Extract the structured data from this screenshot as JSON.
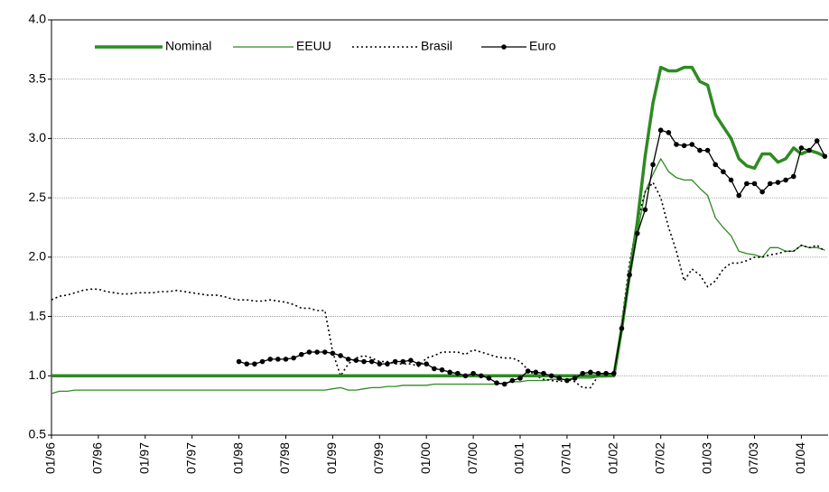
{
  "chart_data": {
    "type": "line",
    "categories": [
      "01/96",
      null,
      null,
      null,
      null,
      null,
      "07/96",
      null,
      null,
      null,
      null,
      null,
      "01/97",
      null,
      null,
      null,
      null,
      null,
      "07/97",
      null,
      null,
      null,
      null,
      null,
      "01/98",
      null,
      null,
      null,
      null,
      null,
      "07/98",
      null,
      null,
      null,
      null,
      null,
      "01/99",
      null,
      null,
      null,
      null,
      null,
      "07/99",
      null,
      null,
      null,
      null,
      null,
      "01/00",
      null,
      null,
      null,
      null,
      null,
      "07/00",
      null,
      null,
      null,
      null,
      null,
      "01/01",
      null,
      null,
      null,
      null,
      null,
      "07/01",
      null,
      null,
      null,
      null,
      null,
      "01/02",
      null,
      null,
      null,
      null,
      null,
      "07/02",
      null,
      null,
      null,
      null,
      null,
      "01/03",
      null,
      null,
      null,
      null,
      null,
      "07/03",
      null,
      null,
      null,
      null,
      null,
      "01/04",
      null,
      null,
      null
    ],
    "series": [
      {
        "name": "Nominal",
        "color": "#2e8b22",
        "width": 3.5,
        "dashed": false,
        "markers": false,
        "values": [
          1.0,
          1.0,
          1.0,
          1.0,
          1.0,
          1.0,
          1.0,
          1.0,
          1.0,
          1.0,
          1.0,
          1.0,
          1.0,
          1.0,
          1.0,
          1.0,
          1.0,
          1.0,
          1.0,
          1.0,
          1.0,
          1.0,
          1.0,
          1.0,
          1.0,
          1.0,
          1.0,
          1.0,
          1.0,
          1.0,
          1.0,
          1.0,
          1.0,
          1.0,
          1.0,
          1.0,
          1.0,
          1.0,
          1.0,
          1.0,
          1.0,
          1.0,
          1.0,
          1.0,
          1.0,
          1.0,
          1.0,
          1.0,
          1.0,
          1.0,
          1.0,
          1.0,
          1.0,
          1.0,
          1.0,
          1.0,
          1.0,
          1.0,
          1.0,
          1.0,
          1.0,
          1.0,
          1.0,
          1.0,
          1.0,
          1.0,
          1.0,
          1.0,
          1.0,
          1.0,
          1.0,
          1.0,
          1.0,
          1.4,
          1.85,
          2.3,
          2.85,
          3.3,
          3.6,
          3.57,
          3.57,
          3.6,
          3.6,
          3.48,
          3.45,
          3.2,
          3.1,
          3.0,
          2.83,
          2.77,
          2.75,
          2.87,
          2.87,
          2.8,
          2.83,
          2.92,
          2.87,
          2.9,
          2.88,
          2.85
        ]
      },
      {
        "name": "EEUU",
        "color": "#2e8b22",
        "width": 1.3,
        "dashed": false,
        "markers": false,
        "values": [
          0.85,
          0.87,
          0.87,
          0.88,
          0.88,
          0.88,
          0.88,
          0.88,
          0.88,
          0.88,
          0.88,
          0.88,
          0.88,
          0.88,
          0.88,
          0.88,
          0.88,
          0.88,
          0.88,
          0.88,
          0.88,
          0.88,
          0.88,
          0.88,
          0.88,
          0.88,
          0.88,
          0.88,
          0.88,
          0.88,
          0.88,
          0.88,
          0.88,
          0.88,
          0.88,
          0.88,
          0.89,
          0.9,
          0.88,
          0.88,
          0.89,
          0.9,
          0.9,
          0.91,
          0.91,
          0.92,
          0.92,
          0.92,
          0.92,
          0.93,
          0.93,
          0.93,
          0.93,
          0.93,
          0.93,
          0.93,
          0.93,
          0.93,
          0.94,
          0.95,
          0.95,
          0.96,
          0.96,
          0.96,
          0.97,
          0.97,
          0.97,
          0.98,
          0.98,
          0.98,
          0.99,
          0.99,
          1.0,
          1.4,
          1.8,
          2.2,
          2.55,
          2.7,
          2.83,
          2.72,
          2.67,
          2.65,
          2.65,
          2.58,
          2.52,
          2.33,
          2.25,
          2.18,
          2.05,
          2.03,
          2.02,
          2.0,
          2.08,
          2.08,
          2.05,
          2.05,
          2.1,
          2.08,
          2.08,
          2.06
        ]
      },
      {
        "name": "Brasil",
        "color": "#000000",
        "width": 1.6,
        "dashed": true,
        "markers": false,
        "values": [
          1.64,
          1.67,
          1.68,
          1.7,
          1.72,
          1.73,
          1.73,
          1.71,
          1.7,
          1.69,
          1.69,
          1.7,
          1.7,
          1.7,
          1.71,
          1.71,
          1.72,
          1.71,
          1.7,
          1.69,
          1.68,
          1.68,
          1.67,
          1.65,
          1.64,
          1.64,
          1.63,
          1.63,
          1.64,
          1.63,
          1.62,
          1.6,
          1.57,
          1.57,
          1.55,
          1.55,
          1.2,
          1.0,
          1.1,
          1.15,
          1.17,
          1.15,
          1.12,
          1.12,
          1.1,
          1.1,
          1.1,
          1.08,
          1.15,
          1.17,
          1.2,
          1.2,
          1.2,
          1.18,
          1.22,
          1.2,
          1.18,
          1.16,
          1.15,
          1.15,
          1.12,
          1.05,
          1.0,
          0.97,
          0.96,
          0.95,
          0.97,
          0.95,
          0.9,
          0.9,
          1.0,
          1.0,
          1.0,
          1.45,
          1.95,
          2.3,
          2.55,
          2.63,
          2.5,
          2.25,
          2.05,
          1.8,
          1.9,
          1.85,
          1.75,
          1.8,
          1.9,
          1.95,
          1.95,
          1.97,
          2.0,
          2.0,
          2.02,
          2.03,
          2.05,
          2.05,
          2.1,
          2.08,
          2.1,
          2.05
        ]
      },
      {
        "name": "Euro",
        "color": "#000000",
        "width": 1.3,
        "dashed": false,
        "markers": true,
        "values": [
          null,
          null,
          null,
          null,
          null,
          null,
          null,
          null,
          null,
          null,
          null,
          null,
          null,
          null,
          null,
          null,
          null,
          null,
          null,
          null,
          null,
          null,
          null,
          null,
          1.12,
          1.1,
          1.1,
          1.12,
          1.14,
          1.14,
          1.14,
          1.15,
          1.18,
          1.2,
          1.2,
          1.2,
          1.19,
          1.17,
          1.14,
          1.13,
          1.12,
          1.12,
          1.1,
          1.1,
          1.12,
          1.12,
          1.13,
          1.1,
          1.1,
          1.06,
          1.05,
          1.03,
          1.02,
          1.0,
          1.02,
          1.0,
          0.98,
          0.94,
          0.93,
          0.96,
          0.98,
          1.04,
          1.03,
          1.02,
          1.0,
          0.98,
          0.96,
          0.98,
          1.02,
          1.03,
          1.02,
          1.02,
          1.02,
          1.4,
          1.85,
          2.2,
          2.4,
          2.78,
          3.07,
          3.05,
          2.95,
          2.94,
          2.95,
          2.9,
          2.9,
          2.78,
          2.72,
          2.65,
          2.52,
          2.62,
          2.62,
          2.55,
          2.62,
          2.63,
          2.65,
          2.68,
          2.92,
          2.9,
          2.98,
          2.85
        ]
      }
    ],
    "ylim": [
      0.5,
      4.0
    ],
    "yticks": [
      0.5,
      {
        "value": 1.0,
        "label": "1.0"
      },
      1.5,
      {
        "value": 2.0,
        "label": "2.0"
      },
      2.5,
      {
        "value": 3.0,
        "label": "3.0"
      },
      3.5,
      {
        "value": 4.0,
        "label": "4.0"
      }
    ],
    "grid": true,
    "legend": "top"
  }
}
